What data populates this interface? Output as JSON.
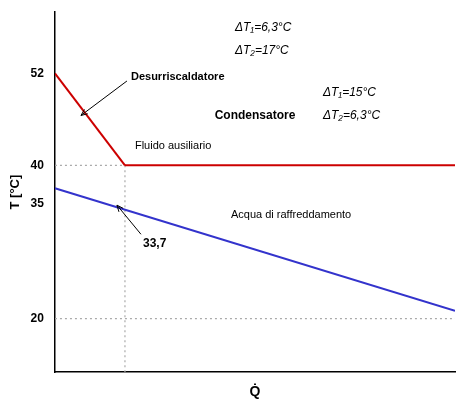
{
  "chart_data": {
    "type": "line",
    "x_label": "Q̇",
    "y_label": "T [°C]",
    "xlim": [
      0,
      1.0
    ],
    "ylim": [
      13,
      60
    ],
    "yticks": [
      20,
      35,
      40,
      52
    ],
    "tick_labels": "y",
    "grid": false,
    "series": [
      {
        "x": [
          0.0,
          0.175
        ],
        "values": [
          52,
          40
        ],
        "color": "#cc0000"
      },
      {
        "x": [
          0.175,
          1.0
        ],
        "values": [
          40,
          40
        ],
        "color": "#cc0000"
      },
      {
        "x": [
          0.0,
          1.0
        ],
        "values": [
          37,
          21
        ],
        "color": "#3333cc"
      },
      {
        "x": [
          0.175,
          0.175
        ],
        "values": [
          13.0,
          40.0
        ],
        "color": "#aaaaaa",
        "line_style": "dotted"
      },
      {
        "x": [
          0,
          1.0
        ],
        "values": [
          20,
          20
        ],
        "color": "#aaaaaa",
        "line_style": "dotted"
      },
      {
        "x": [
          0,
          0.175
        ],
        "values": [
          40,
          40
        ],
        "color": "#aaaaaa",
        "line_style": "dotted"
      }
    ],
    "annotations": [
      "Desurriscaldatore",
      "Condensatore",
      "Fluido ausiliario",
      "Acqua di raffreddamento",
      "33,7",
      "ΔT₁=6,3°C",
      "ΔT₂=17°C",
      "ΔT₁=15°C",
      "ΔT₂=6,3°C"
    ]
  }
}
